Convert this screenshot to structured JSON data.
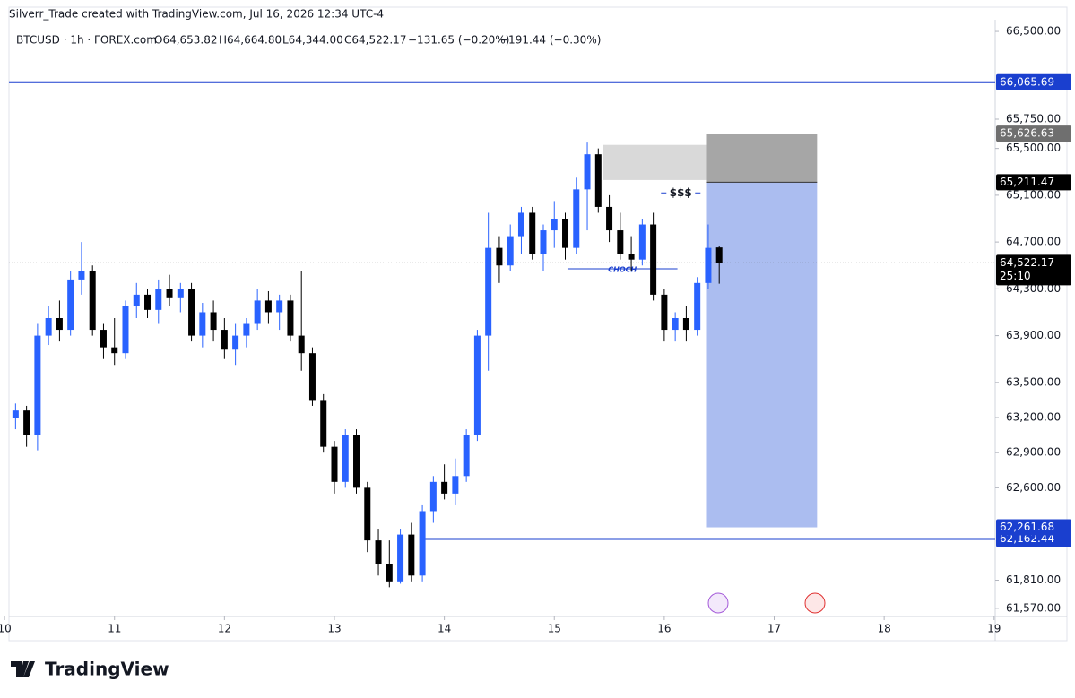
{
  "chart_data": {
    "type": "candlestick",
    "watermark": "Silverr_Trade created with TradingView.com, Jul 16, 2026 12:34 UTC-4",
    "legend": {
      "symbol": "BTCUSD · 1h · FOREX.com",
      "open": "O64,653.82",
      "high": "H64,664.80",
      "low": "L64,344.00",
      "close": "C64,522.17",
      "change": "−131.65 (−0.20%)",
      "change2": "−191.44 (−0.30%)"
    },
    "brand": "TradingView",
    "up_color": "#2962ff",
    "down_color": "#000000",
    "xlim": [
      10.04,
      19.01
    ],
    "xticks": [
      10,
      11,
      12,
      13,
      14,
      15,
      16,
      17,
      18,
      19
    ],
    "ylim": [
      61500,
      66600
    ],
    "yticks": [
      {
        "value": 61570,
        "label": "61,570.00"
      },
      {
        "value": 61810,
        "label": "61,810.00"
      },
      {
        "value": 62600,
        "label": "62,600.00"
      },
      {
        "value": 62900,
        "label": "62,900.00"
      },
      {
        "value": 63200,
        "label": "63,200.00"
      },
      {
        "value": 63500,
        "label": "63,500.00"
      },
      {
        "value": 63900,
        "label": "63,900.00"
      },
      {
        "value": 64300,
        "label": "64,300.00"
      },
      {
        "value": 64700,
        "label": "64,700.00"
      },
      {
        "value": 65100,
        "label": "65,100.00"
      },
      {
        "value": 65500,
        "label": "65,500.00"
      },
      {
        "value": 65750,
        "label": "65,750.00"
      },
      {
        "value": 66500,
        "label": "66,500.00"
      }
    ],
    "x": [
      10.1,
      10.2,
      10.3,
      10.4,
      10.5,
      10.6,
      10.7,
      10.8,
      10.9,
      11.0,
      11.1,
      11.2,
      11.3,
      11.4,
      11.5,
      11.6,
      11.7,
      11.8,
      11.9,
      12.0,
      12.1,
      12.2,
      12.3,
      12.4,
      12.5,
      12.6,
      12.7,
      12.8,
      12.9,
      13.0,
      13.1,
      13.2,
      13.3,
      13.4,
      13.5,
      13.6,
      13.7,
      13.8,
      13.9,
      14.0,
      14.1,
      14.2,
      14.3,
      14.4,
      14.5,
      14.6,
      14.7,
      14.8,
      14.9,
      15.0,
      15.1,
      15.2,
      15.3,
      15.4,
      15.5,
      15.6,
      15.7,
      15.8,
      15.9,
      16.0,
      16.1,
      16.2,
      16.3,
      16.4,
      16.5
    ],
    "open": [
      63200,
      63260,
      63050,
      63900,
      64050,
      63950,
      64380,
      64450,
      63950,
      63800,
      63750,
      64150,
      64250,
      64120,
      64300,
      64220,
      64300,
      63900,
      64100,
      63950,
      63780,
      63900,
      64000,
      64200,
      64100,
      64200,
      63900,
      63750,
      63350,
      62950,
      62650,
      63050,
      62600,
      62150,
      61950,
      61800,
      62200,
      61850,
      62400,
      62650,
      62550,
      62700,
      63050,
      63900,
      64650,
      64500,
      64750,
      64950,
      64600,
      64800,
      64900,
      64650,
      65150,
      65450,
      65000,
      64800,
      64600,
      64550,
      64850,
      64250,
      63950,
      64050,
      63950,
      64350,
      64653.82
    ],
    "high": [
      63320,
      63300,
      64000,
      64150,
      64200,
      64450,
      64700,
      64500,
      64000,
      64050,
      64200,
      64350,
      64300,
      64380,
      64420,
      64350,
      64350,
      64180,
      64200,
      64050,
      64000,
      64050,
      64300,
      64280,
      64250,
      64250,
      64450,
      63800,
      63400,
      63000,
      63100,
      63100,
      62650,
      62250,
      62150,
      62250,
      62300,
      62450,
      62700,
      62800,
      62850,
      63100,
      63950,
      64950,
      64750,
      64850,
      65000,
      65000,
      64850,
      65050,
      64950,
      65250,
      65550,
      65500,
      65100,
      64950,
      64750,
      64900,
      64950,
      64300,
      64100,
      64150,
      64400,
      64850,
      64664.8
    ],
    "low": [
      63100,
      62950,
      62920,
      63820,
      63850,
      63900,
      64250,
      63900,
      63700,
      63650,
      63700,
      64050,
      64050,
      64000,
      64150,
      64100,
      63850,
      63800,
      63850,
      63700,
      63650,
      63800,
      63950,
      64000,
      63950,
      63850,
      63600,
      63300,
      62900,
      62550,
      62600,
      62550,
      62050,
      61850,
      61750,
      61780,
      61800,
      61800,
      62300,
      62500,
      62450,
      62650,
      63000,
      63600,
      64350,
      64450,
      64600,
      64550,
      64450,
      64650,
      64550,
      64600,
      64800,
      64950,
      64700,
      64550,
      64450,
      64500,
      64200,
      63850,
      63850,
      63850,
      63900,
      64300,
      64344.0
    ],
    "close": [
      63260,
      63050,
      63900,
      64050,
      63950,
      64380,
      64450,
      63950,
      63800,
      63750,
      64150,
      64250,
      64120,
      64300,
      64220,
      64300,
      63900,
      64100,
      63950,
      63780,
      63900,
      64000,
      64200,
      64100,
      64200,
      63900,
      63750,
      63350,
      62950,
      62650,
      63050,
      62600,
      62150,
      61950,
      61800,
      62200,
      61850,
      62400,
      62650,
      62550,
      62700,
      63050,
      63900,
      64650,
      64500,
      64750,
      64950,
      64600,
      64800,
      64900,
      64650,
      65150,
      65450,
      65000,
      64800,
      64600,
      64550,
      64850,
      64250,
      63950,
      64050,
      63950,
      64350,
      64650,
      64522.17
    ],
    "levels": [
      {
        "value": 66065.69,
        "label": "66,065.69",
        "color": "#1a3fcf",
        "start": 10.04
      },
      {
        "value": 62162.44,
        "label": "62,162.44",
        "color": "#1a3fcf",
        "start": 13.79
      }
    ],
    "position": {
      "start": 16.38,
      "end": 17.39,
      "stop": {
        "value": 65626.63,
        "label": "65,626.63",
        "color": "#6f6f6f"
      },
      "entry": {
        "value": 65211.47,
        "label": "65,211.47",
        "color": "#000000"
      },
      "target": {
        "value": 62261.68,
        "label": "62,261.68",
        "color": "#1a3fcf"
      }
    },
    "zone": {
      "top": 65530,
      "bottom": 65230,
      "start": 15.44,
      "end": 16.38
    },
    "current": {
      "value": 64522.17,
      "label": "64,522.17",
      "countdown": "25:10"
    },
    "choch": {
      "text": "CHOCH",
      "price": 64471,
      "start": 15.12,
      "end": 16.12
    },
    "liquidity": {
      "text": "$$$",
      "x": 16.15,
      "price": 65120
    }
  }
}
